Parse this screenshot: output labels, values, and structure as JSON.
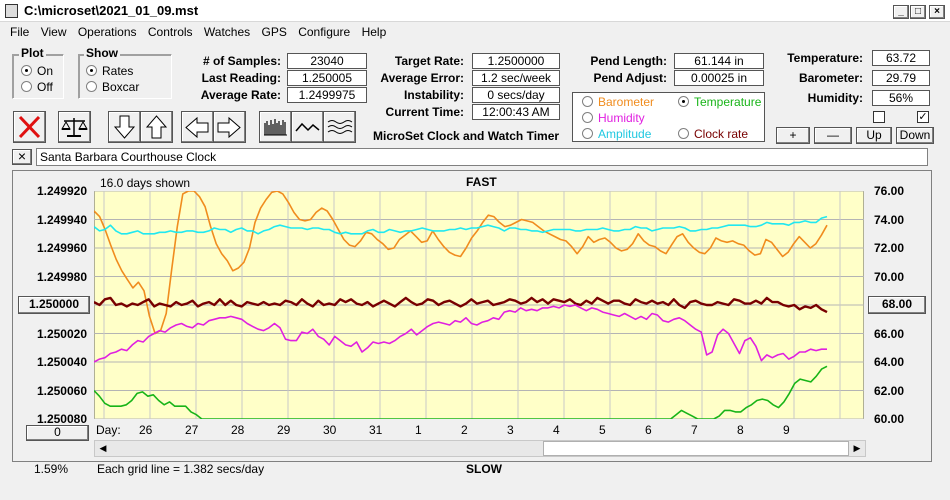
{
  "window": {
    "title": "C:\\microset\\2021_01_09.mst"
  },
  "menu": [
    "File",
    "View",
    "Operations",
    "Controls",
    "Watches",
    "GPS",
    "Configure",
    "Help"
  ],
  "plot_group": {
    "title": "Plot",
    "on": "On",
    "off": "Off",
    "selected": "On"
  },
  "show_group": {
    "title": "Show",
    "rates": "Rates",
    "boxcar": "Boxcar",
    "selected": "Rates"
  },
  "stats": {
    "samples_label": "# of Samples:",
    "samples": "23040",
    "last_reading_label": "Last Reading:",
    "last_reading": "1.250005",
    "avg_rate_label": "Average Rate:",
    "avg_rate": "1.2499975",
    "target_rate_label": "Target Rate:",
    "target_rate": "1.2500000",
    "avg_error_label": "Average Error:",
    "avg_error": "1.2 sec/week",
    "instability_label": "Instability:",
    "instability": "0 secs/day",
    "current_time_label": "Current Time:",
    "current_time": "12:00:43 AM",
    "pend_length_label": "Pend Length:",
    "pend_length": "61.144 in",
    "pend_adjust_label": "Pend Adjust:",
    "pend_adjust": "0.00025 in",
    "temperature_label": "Temperature:",
    "temperature": "63.72",
    "barometer_label": "Barometer:",
    "barometer": "29.79",
    "humidity_label": "Humidity:",
    "humidity": "56%"
  },
  "app_name": "MicroSet Clock and Watch Timer",
  "legend": {
    "barometer": "Barometer",
    "temperature": "Temperature",
    "humidity": "Humidity",
    "amplitude": "Amplitude",
    "clock_rate": "Clock rate",
    "selected": "Temperature"
  },
  "aux_buttons": {
    "plus": "+",
    "minus": "—",
    "up": "Up",
    "down": "Down"
  },
  "checkboxes": {
    "left": false,
    "right": true
  },
  "clock_name": "Santa Barbara Courthouse Clock",
  "close_x": "×",
  "chart": {
    "days_shown": "16.0 days shown",
    "top_label": "FAST",
    "bottom_label": "SLOW",
    "day_prefix": "Day:",
    "left_button": "1.250000",
    "right_button": "68.00",
    "bottom_left_button": "0",
    "percent": "1.59%",
    "grid_note": "Each grid line = 1.382 secs/day"
  },
  "colors": {
    "plot_bg": "#ffffc8",
    "barometer": "#f08c1e",
    "temperature": "#18b418",
    "humidity": "#e020e0",
    "amplitude": "#20e8f0",
    "clock_rate": "#780000"
  },
  "chart_data": {
    "type": "line",
    "x_tick_labels": [
      "26",
      "27",
      "28",
      "29",
      "30",
      "31",
      "1",
      "2",
      "3",
      "4",
      "5",
      "6",
      "7",
      "8",
      "9"
    ],
    "y_left_labels": [
      "1.249920",
      "1.249940",
      "1.249960",
      "1.249980",
      "1.250000",
      "1.250020",
      "1.250040",
      "1.250060",
      "1.250080"
    ],
    "y_right_labels": [
      "76.00",
      "74.00",
      "72.00",
      "70.00",
      "68.00",
      "66.00",
      "64.00",
      "62.00",
      "60.00"
    ],
    "ylim_left": [
      1.24992,
      1.25008
    ],
    "ylim_right": [
      60,
      76
    ],
    "series": [
      {
        "name": "Barometer",
        "color": "#f08c1e",
        "values": [
          74.6,
          74.2,
          73.3,
          72.2,
          71.2,
          70.4,
          69.8,
          69.2,
          69.6,
          69.0,
          67.2,
          66.0,
          66.2,
          67.4,
          70.5,
          73.5,
          75.8,
          76.0,
          76.0,
          75.6,
          74.9,
          73.5,
          72.3,
          71.6,
          71.1,
          70.4,
          70.6,
          71.0,
          72.0,
          73.8,
          74.8,
          75.4,
          75.9,
          76.0,
          75.8,
          75.2,
          74.5,
          74.0,
          73.9,
          74.0,
          74.5,
          74.8,
          74.6,
          74.0,
          73.3,
          72.6,
          72.2,
          72.1,
          72.5,
          73.1,
          73.0,
          72.6,
          72.3,
          71.9,
          72.0,
          72.6,
          72.9,
          73.2,
          72.8,
          72.4,
          72.5,
          73.2,
          72.6,
          72.1,
          71.7,
          71.5,
          71.4,
          72.0,
          72.7,
          73.2,
          73.8,
          74.3,
          74.2,
          73.8,
          73.5,
          73.6,
          73.8,
          74.0,
          73.9,
          73.8,
          73.5,
          73.2,
          73.0,
          72.8,
          72.6,
          72.5,
          72.1,
          71.6,
          72.1,
          72.8,
          72.4,
          72.6,
          72.7,
          72.4,
          72.0,
          71.8,
          71.9,
          72.3,
          73.0,
          72.5,
          72.2,
          72.1,
          71.8,
          71.6,
          72.2,
          72.8,
          73.0,
          72.4,
          72.0,
          71.7,
          71.6,
          72.0,
          72.7,
          72.5,
          72.4,
          72.5,
          72.3,
          72.2,
          71.8,
          71.5,
          71.6,
          72.6,
          72.4,
          71.9,
          71.4,
          71.7,
          72.3,
          72.8,
          72.4,
          72.0,
          72.3,
          72.9,
          73.6
        ]
      },
      {
        "name": "Amplitude",
        "color": "#20e8f0",
        "values": [
          73.5,
          73.2,
          73.3,
          73.6,
          73.2,
          73.0,
          73.0,
          73.1,
          73.2,
          73.0,
          73.0,
          73.0,
          73.1,
          73.1,
          73.2,
          73.1,
          73.1,
          73.2,
          73.2,
          73.1,
          73.1,
          73.2,
          73.4,
          73.3,
          73.3,
          73.1,
          73.3,
          73.4,
          73.2,
          73.2,
          73.0,
          73.2,
          73.3,
          73.5,
          73.6,
          73.5,
          73.4,
          73.4,
          73.4,
          73.3,
          73.4,
          73.4,
          73.3,
          73.3,
          73.1,
          73.0,
          73.1,
          73.0,
          73.0,
          73.0,
          73.2,
          73.3,
          73.1,
          73.1,
          73.3,
          73.2,
          73.1,
          73.2,
          73.2,
          73.3,
          73.4,
          73.3,
          73.2,
          73.2,
          73.2,
          73.3,
          73.3,
          73.4,
          73.3,
          73.4,
          73.4,
          73.5,
          73.6,
          73.5,
          73.4,
          73.2,
          73.4,
          73.4,
          73.3,
          73.3,
          73.2,
          73.2,
          73.1,
          73.2,
          73.3,
          73.3,
          73.3,
          73.3,
          73.2,
          73.2,
          73.3,
          73.3,
          73.3,
          73.4,
          73.3,
          73.2,
          73.2,
          73.3,
          73.3,
          73.5,
          73.4,
          73.4,
          73.2,
          73.3,
          73.4,
          73.4,
          73.4,
          73.5,
          73.4,
          73.2,
          73.2,
          73.3,
          73.3,
          73.4,
          73.4,
          73.5,
          73.6,
          73.6,
          73.6,
          73.6,
          73.5,
          73.5,
          73.6,
          73.8,
          73.7,
          73.7,
          73.7,
          73.6,
          73.8,
          73.8,
          73.9,
          73.8,
          73.8,
          74.1,
          74.2
        ]
      },
      {
        "name": "Clock rate",
        "color": "#780000",
        "values": [
          1.249998,
          1.25,
          1.249996,
          1.249995,
          1.25,
          1.249999,
          1.250001,
          1.249999,
          1.25,
          1.249998,
          1.249996,
          1.250001,
          1.249999,
          1.25,
          1.250001,
          1.249998,
          1.25,
          1.249999,
          1.249997,
          1.250001,
          1.249999,
          1.249998,
          1.25,
          1.249996,
          1.25,
          1.249997,
          1.25,
          1.250001,
          1.249998,
          1.249999,
          1.25,
          1.249998,
          1.25,
          1.249999,
          1.25,
          1.249997,
          1.249998,
          1.25,
          1.249996,
          1.249999,
          1.250001,
          1.249997,
          1.25,
          1.249999,
          1.25,
          1.249996,
          1.249998,
          1.249996,
          1.249999,
          1.25,
          1.249998,
          1.250001,
          1.249999,
          1.249997,
          1.249999,
          1.250001,
          1.249998,
          1.249995,
          1.249998,
          1.25,
          1.249999,
          1.249996,
          1.249997,
          1.25,
          1.249998,
          1.249997,
          1.249999,
          1.250001,
          1.249999,
          1.249996,
          1.249999,
          1.249998,
          1.249997,
          1.25,
          1.249999,
          1.249998,
          1.249996,
          1.249997,
          1.249999,
          1.249998,
          1.249995,
          1.249998,
          1.249996,
          1.249999,
          1.249996,
          1.249997,
          1.249998,
          1.249996,
          1.249999,
          1.25,
          1.249997,
          1.249999,
          1.249995,
          1.249997,
          1.249999,
          1.249997,
          1.249997,
          1.249999,
          1.25,
          1.249996,
          1.249998,
          1.249999,
          1.249997,
          1.249999,
          1.249998,
          1.25,
          1.249996,
          1.25,
          1.250002,
          1.249998,
          1.249997,
          1.249999,
          1.25,
          1.25,
          1.249998,
          1.249999,
          1.25,
          1.249996,
          1.249997,
          1.249999,
          1.249999,
          1.249997,
          1.249999,
          1.249995,
          1.249998,
          1.249998,
          1.25,
          1.250001,
          1.25,
          1.250003,
          1.250001,
          1.250002,
          1.25,
          1.250003,
          1.250005
        ]
      },
      {
        "name": "Humidity",
        "color": "#e020e0",
        "values": [
          64.0,
          64.2,
          64.3,
          64.6,
          64.7,
          64.9,
          64.8,
          65.2,
          65.5,
          65.4,
          65.8,
          66.0,
          66.2,
          66.1,
          66.4,
          66.6,
          66.7,
          66.5,
          66.4,
          66.7,
          66.6,
          66.9,
          67.0,
          67.1,
          67.1,
          67.2,
          67.1,
          67.0,
          66.7,
          66.5,
          66.3,
          66.2,
          66.4,
          66.7,
          66.4,
          65.6,
          65.5,
          65.5,
          66.1,
          66.0,
          66.3,
          65.8,
          65.6,
          65.2,
          65.8,
          65.5,
          65.2,
          65.1,
          65.4,
          64.7,
          65.0,
          65.4,
          65.3,
          65.4,
          65.3,
          65.5,
          65.8,
          66.0,
          66.3,
          65.9,
          66.2,
          66.5,
          66.7,
          66.8,
          66.7,
          66.6,
          66.9,
          66.8,
          67.1,
          66.7,
          66.6,
          66.8,
          66.9,
          67.1,
          67.0,
          67.5,
          67.6,
          67.5,
          67.8,
          67.6,
          67.7,
          67.6,
          67.8,
          67.8,
          67.9,
          67.8,
          68.0,
          67.9,
          68.0,
          67.8,
          67.6,
          67.8,
          67.7,
          67.5,
          67.4,
          67.3,
          67.2,
          67.4,
          67.2,
          67.0,
          67.2,
          67.0,
          67.4,
          67.3,
          66.9,
          66.8,
          67.0,
          67.1,
          66.9,
          66.6,
          66.3,
          66.1,
          64.5,
          64.7,
          65.9,
          66.3,
          66.0,
          65.3,
          64.6,
          65.5,
          65.7,
          65.1,
          64.1,
          64.5,
          64.3,
          64.5,
          64.6,
          64.2,
          64.4,
          64.7,
          64.7,
          64.9,
          64.8,
          64.9,
          64.9
        ]
      },
      {
        "name": "Temperature",
        "color": "#18b418",
        "values": [
          62.0,
          61.6,
          61.1,
          60.9,
          60.9,
          60.9,
          61.0,
          61.3,
          61.8,
          61.9,
          61.6,
          61.7,
          61.3,
          61.0,
          61.2,
          60.9,
          60.9,
          60.9,
          60.5,
          60.3,
          60.0,
          60.0,
          60.0,
          60.0,
          60.0,
          60.0,
          60.0,
          60.0,
          60.0,
          60.0,
          60.0,
          60.0,
          60.0,
          60.0,
          60.0,
          60.0,
          60.0,
          60.0,
          60.0,
          60.0,
          60.0,
          60.0,
          60.0,
          60.0,
          60.0,
          60.0,
          60.0,
          60.0,
          60.0,
          60.0,
          60.0,
          60.0,
          60.0,
          60.0,
          60.0,
          60.0,
          60.0,
          60.0,
          60.0,
          60.0,
          60.0,
          60.0,
          60.0,
          60.0,
          60.0,
          60.0,
          60.0,
          60.0,
          60.0,
          60.0,
          60.0,
          60.0,
          60.0,
          60.0,
          60.0,
          60.0,
          60.0,
          60.0,
          60.0,
          60.0,
          60.0,
          60.0,
          60.0,
          60.0,
          60.0,
          60.0,
          60.0,
          60.0,
          60.0,
          60.0,
          60.0,
          60.0,
          60.0,
          60.0,
          60.0,
          60.0,
          60.0,
          60.0,
          60.0,
          60.0,
          60.0,
          60.0,
          60.0,
          60.0,
          60.0,
          60.0,
          60.0,
          60.0,
          60.3,
          60.6,
          60.4,
          60.2,
          60.0,
          60.0,
          60.0,
          60.0,
          60.2,
          60.6,
          60.6,
          60.5,
          60.5,
          60.8,
          61.0,
          61.3,
          61.4,
          61.3,
          61.0,
          60.8,
          61.2,
          61.8,
          62.5,
          62.8,
          62.7,
          62.6,
          63.0,
          63.5,
          63.7
        ]
      }
    ]
  }
}
